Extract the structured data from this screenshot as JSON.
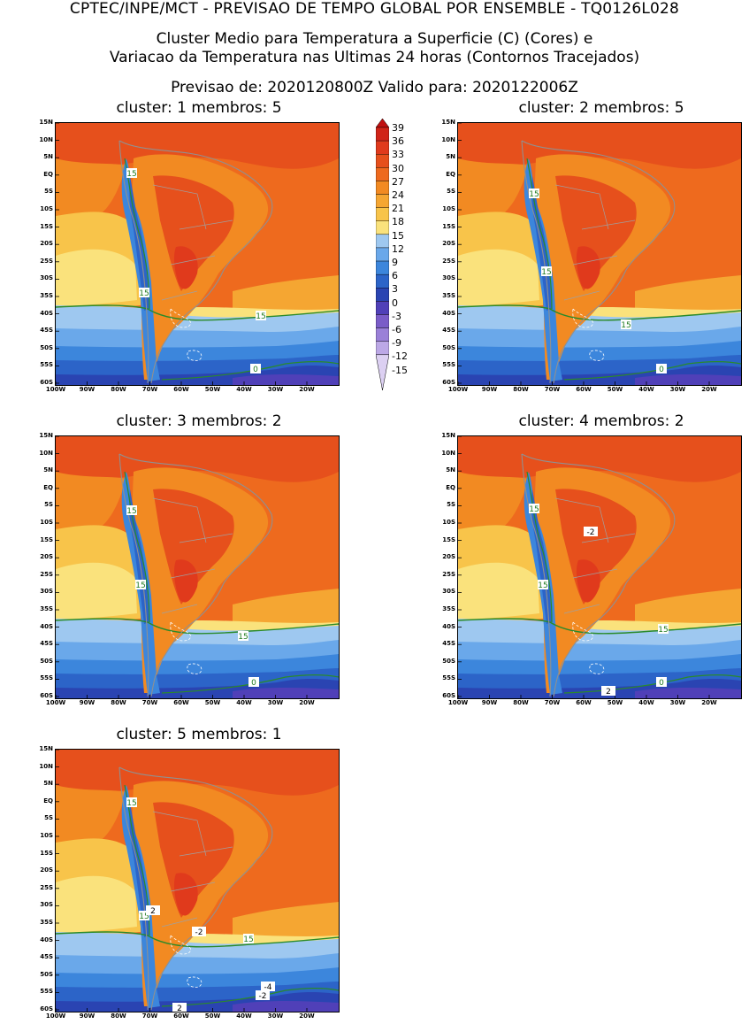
{
  "header": {
    "line1": "CPTEC/INPE/MCT - PREVISAO DE TEMPO GLOBAL POR ENSEMBLE - TQ0126L028",
    "line2": "Cluster Medio para Temperatura a Superficie (C) (Cores) e",
    "line3": "Variacao da Temperatura nas Ultimas 24 horas (Contornos Tracejados)",
    "line4": "Previsao de: 2020120800Z    Valido para: 2020122006Z"
  },
  "panels": [
    {
      "title": "cluster: 1   membros: 5",
      "labels": [
        "15",
        "15",
        "15",
        "0"
      ],
      "anom": []
    },
    {
      "title": "cluster: 2   membros: 5",
      "labels": [
        "15",
        "15",
        "15",
        "0"
      ],
      "anom": []
    },
    {
      "title": "cluster: 3   membros: 2",
      "labels": [
        "15",
        "15",
        "15",
        "0"
      ],
      "anom": []
    },
    {
      "title": "cluster: 4   membros: 2",
      "labels": [
        "15",
        "15",
        "15",
        "0"
      ],
      "anom": [
        "-2",
        "2"
      ]
    },
    {
      "title": "cluster: 5   membros: 1",
      "labels": [
        "15",
        "15",
        "15"
      ],
      "anom": [
        "2",
        "-2",
        "-4",
        "-2",
        "2"
      ]
    }
  ],
  "lat_ticks": [
    "15N",
    "10N",
    "5N",
    "EQ",
    "5S",
    "10S",
    "15S",
    "20S",
    "25S",
    "30S",
    "35S",
    "40S",
    "45S",
    "50S",
    "55S",
    "60S"
  ],
  "lon_ticks": [
    "100W",
    "90W",
    "80W",
    "70W",
    "60W",
    "50W",
    "40W",
    "30W",
    "20W"
  ],
  "colorbar": {
    "labels": [
      "39",
      "36",
      "33",
      "30",
      "27",
      "24",
      "21",
      "18",
      "15",
      "12",
      "9",
      "6",
      "3",
      "0",
      "-3",
      "-6",
      "-9",
      "-12",
      "-15"
    ],
    "colors": [
      "#c01010",
      "#d02418",
      "#e03a1c",
      "#e6501c",
      "#ee6a1e",
      "#f28a22",
      "#f5a632",
      "#f8c44a",
      "#fae27c",
      "#9ec8f0",
      "#6aa8ea",
      "#3c86dc",
      "#2c64c8",
      "#2a44b2",
      "#5040b8",
      "#7a5cc8",
      "#9a80d8",
      "#bca8e6",
      "#dcd0f2"
    ]
  }
}
